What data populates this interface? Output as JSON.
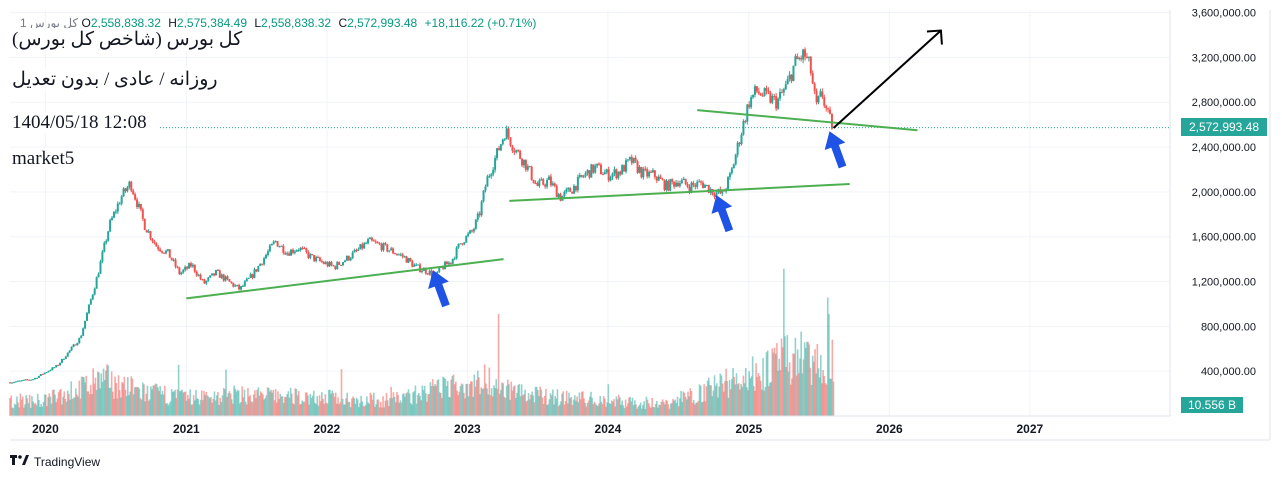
{
  "legend": {
    "symbol": "1 کل بورس",
    "open_label": "O",
    "open": "2,558,838.32",
    "high_label": "H",
    "high": "2,575,384.49",
    "low_label": "L",
    "low": "2,558,838.32",
    "close_label": "C",
    "close": "2,572,993.48",
    "change": "+18,116.22 (+0.71%)"
  },
  "overlay": {
    "title": "کل بورس (شاخص کل بورس)",
    "subtitle": "روزانه / عادی / بدون تعدیل",
    "datetime": "1404/05/18 12:08",
    "author": "market5"
  },
  "last_price_label": "2,572,993.48",
  "volume_label": "10.556 B",
  "brand": {
    "name": "TradingView",
    "logo": "tv-logo-icon"
  },
  "colors": {
    "up": "#26a69a",
    "down": "#ef5350",
    "trendline": "#4caf50",
    "arrow": "#1e53e5",
    "projection": "#000000",
    "last_price": "#26a69a"
  },
  "chart_data": {
    "type": "candlestick",
    "x_axis": {
      "type": "date",
      "ticks": [
        "2020",
        "2021",
        "2022",
        "2023",
        "2024",
        "2025",
        "2026",
        "2027"
      ]
    },
    "y_axis": {
      "range": [
        0,
        3600000
      ],
      "ticks": [
        "3,600,000.00",
        "3,200,000.00",
        "2,800,000.00",
        "2,400,000.00",
        "2,000,000.00",
        "1,600,000.00",
        "1,200,000.00",
        "800,000.00",
        "400,000.00"
      ],
      "tick_values": [
        3600000,
        3200000,
        2800000,
        2400000,
        2000000,
        1600000,
        1200000,
        800000,
        400000
      ]
    },
    "grid": true,
    "series": [
      {
        "points": [
          [
            "2019-10-01",
            300000
          ],
          [
            "2019-12-01",
            330000
          ],
          [
            "2020-02-01",
            450000
          ],
          [
            "2020-04-01",
            700000
          ],
          [
            "2020-05-15",
            1250000
          ],
          [
            "2020-06-15",
            1700000
          ],
          [
            "2020-07-15",
            1950000
          ],
          [
            "2020-08-09",
            2080000
          ],
          [
            "2020-09-15",
            1700000
          ],
          [
            "2020-10-15",
            1520000
          ],
          [
            "2020-11-15",
            1450000
          ],
          [
            "2020-12-15",
            1270000
          ],
          [
            "2021-01-15",
            1350000
          ],
          [
            "2021-02-15",
            1180000
          ],
          [
            "2021-03-20",
            1280000
          ],
          [
            "2021-04-20",
            1200000
          ],
          [
            "2021-05-20",
            1130000
          ],
          [
            "2021-06-20",
            1250000
          ],
          [
            "2021-07-20",
            1400000
          ],
          [
            "2021-08-20",
            1560000
          ],
          [
            "2021-09-20",
            1460000
          ],
          [
            "2021-10-20",
            1500000
          ],
          [
            "2021-11-20",
            1420000
          ],
          [
            "2021-12-20",
            1370000
          ],
          [
            "2022-01-20",
            1330000
          ],
          [
            "2022-02-20",
            1400000
          ],
          [
            "2022-03-20",
            1470000
          ],
          [
            "2022-04-20",
            1560000
          ],
          [
            "2022-05-20",
            1520000
          ],
          [
            "2022-06-20",
            1470000
          ],
          [
            "2022-07-20",
            1420000
          ],
          [
            "2022-08-20",
            1330000
          ],
          [
            "2022-09-20",
            1290000
          ],
          [
            "2022-10-10",
            1250000
          ],
          [
            "2022-10-25",
            1320000
          ],
          [
            "2022-11-20",
            1380000
          ],
          [
            "2022-12-15",
            1550000
          ],
          [
            "2023-01-15",
            1650000
          ],
          [
            "2023-02-01",
            1800000
          ],
          [
            "2023-02-20",
            2100000
          ],
          [
            "2023-03-20",
            2350000
          ],
          [
            "2023-04-10",
            2550000
          ],
          [
            "2023-05-01",
            2400000
          ],
          [
            "2023-06-01",
            2250000
          ],
          [
            "2023-07-01",
            2050000
          ],
          [
            "2023-08-01",
            2100000
          ],
          [
            "2023-09-01",
            1950000
          ],
          [
            "2023-10-01",
            2030000
          ],
          [
            "2023-11-01",
            2150000
          ],
          [
            "2023-12-01",
            2220000
          ],
          [
            "2024-01-01",
            2150000
          ],
          [
            "2024-02-01",
            2180000
          ],
          [
            "2024-03-01",
            2280000
          ],
          [
            "2024-04-01",
            2160000
          ],
          [
            "2024-05-01",
            2150000
          ],
          [
            "2024-06-01",
            2050000
          ],
          [
            "2024-07-01",
            2100000
          ],
          [
            "2024-08-01",
            2050000
          ],
          [
            "2024-09-01",
            2080000
          ],
          [
            "2024-10-01",
            2000000
          ],
          [
            "2024-10-25",
            1980000
          ],
          [
            "2024-11-15",
            2150000
          ],
          [
            "2024-12-10",
            2500000
          ],
          [
            "2025-01-01",
            2800000
          ],
          [
            "2025-01-20",
            2900000
          ],
          [
            "2025-02-15",
            2850000
          ],
          [
            "2025-03-15",
            2800000
          ],
          [
            "2025-04-10",
            2950000
          ],
          [
            "2025-05-01",
            3150000
          ],
          [
            "2025-05-25",
            3230000
          ],
          [
            "2025-06-10",
            3100000
          ],
          [
            "2025-06-25",
            2750000
          ],
          [
            "2025-07-10",
            2880000
          ],
          [
            "2025-07-25",
            2680000
          ],
          [
            "2025-08-09",
            2572993
          ]
        ]
      },
      {
        "name": "Volume",
        "points": [
          [
            "2020-01-01",
            25
          ],
          [
            "2020-06-01",
            60
          ],
          [
            "2020-09-01",
            40
          ],
          [
            "2021-01-01",
            30
          ],
          [
            "2021-06-01",
            35
          ],
          [
            "2022-01-01",
            30
          ],
          [
            "2022-06-01",
            25
          ],
          [
            "2022-11-01",
            45
          ],
          [
            "2023-03-01",
            60
          ],
          [
            "2023-06-01",
            35
          ],
          [
            "2024-01-01",
            25
          ],
          [
            "2024-06-01",
            20
          ],
          [
            "2024-12-01",
            60
          ],
          [
            "2025-03-01",
            80
          ],
          [
            "2025-05-15",
            100
          ],
          [
            "2025-08-01",
            60
          ]
        ]
      }
    ],
    "annotations": {
      "trendlines": [
        {
          "from": [
            "2021-01-01",
            1050000
          ],
          "to": [
            "2023-04-05",
            1400000
          ]
        },
        {
          "from": [
            "2023-04-20",
            1920000
          ],
          "to": [
            "2025-09-20",
            2070000
          ]
        },
        {
          "from": [
            "2024-08-20",
            2730000
          ],
          "to": [
            "2026-03-15",
            2550000
          ]
        }
      ],
      "up_arrows": [
        {
          "at": [
            "2022-10-25",
            1100000
          ]
        },
        {
          "at": [
            "2024-10-30",
            1770000
          ]
        },
        {
          "at": [
            "2025-08-20",
            2340000
          ]
        }
      ],
      "projection": {
        "from": [
          "2025-08-09",
          2570000
        ],
        "to": [
          "2026-05-15",
          3440000
        ]
      }
    }
  }
}
